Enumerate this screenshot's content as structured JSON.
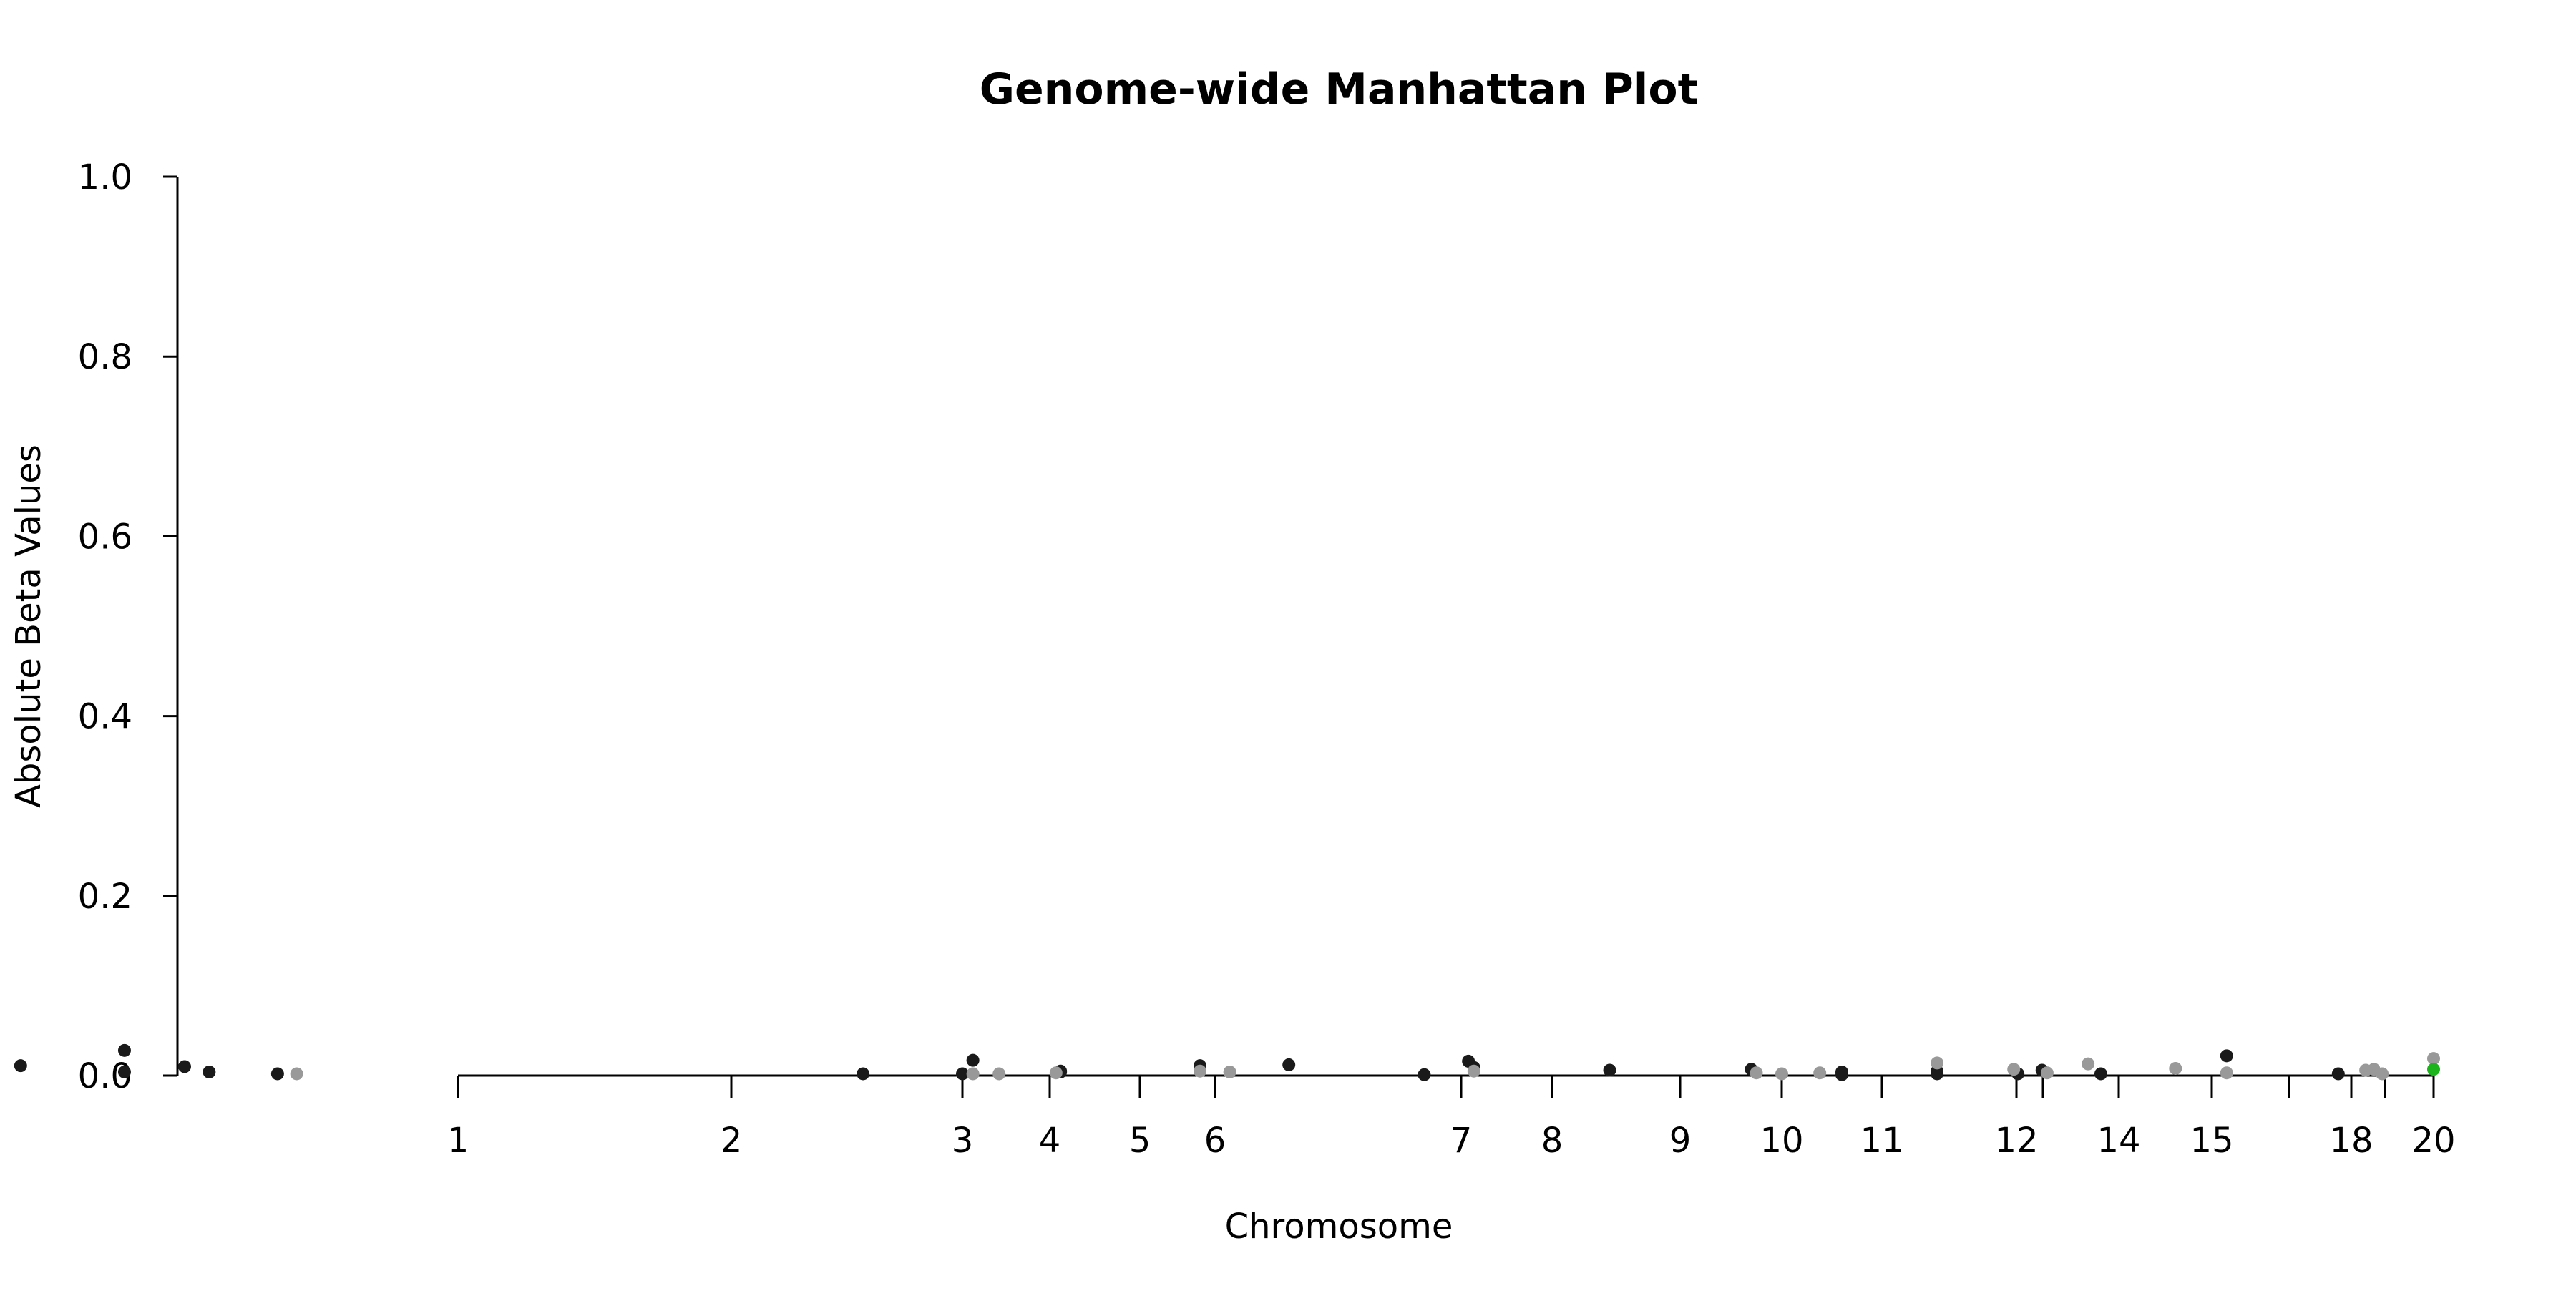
{
  "chart_data": {
    "type": "scatter",
    "title": "Genome-wide Manhattan Plot",
    "xlabel": "Chromosome",
    "ylabel": "Absolute Beta Values",
    "ylim": [
      0,
      1.0
    ],
    "yticks": [
      "0.0",
      "0.2",
      "0.4",
      "0.6",
      "0.8",
      "1.0"
    ],
    "x_tick_labels": [
      "1",
      "2",
      "3",
      "4",
      "5",
      "6",
      "7",
      "8",
      "9",
      "10",
      "11",
      "12",
      "14",
      "15",
      "18",
      "20"
    ],
    "grid": false,
    "legend": "none",
    "colors": {
      "odd": "#1a1a1a",
      "even": "#999999",
      "highlight": "#1db31d"
    },
    "series": [
      {
        "values": [
          {
            "x": -0.6,
            "y": 0.011
          },
          {
            "x": -0.22,
            "y": 0.028
          },
          {
            "x": -0.22,
            "y": 0.004
          },
          {
            "x": 0.0,
            "y": 0.01
          },
          {
            "x": 0.09,
            "y": 0.004
          },
          {
            "x": 0.34,
            "y": 0.002
          },
          {
            "x": 2.57,
            "y": 0.002
          },
          {
            "x": 3.0,
            "y": 0.002
          },
          {
            "x": 3.12,
            "y": 0.017
          },
          {
            "x": 4.12,
            "y": 0.005
          },
          {
            "x": 4.12,
            "y": 0.004
          },
          {
            "x": 5.8,
            "y": 0.011
          },
          {
            "x": 6.3,
            "y": 0.012
          },
          {
            "x": 6.85,
            "y": 0.001
          },
          {
            "x": 7.08,
            "y": 0.016
          },
          {
            "x": 7.14,
            "y": 0.009
          },
          {
            "x": 8.45,
            "y": 0.006
          },
          {
            "x": 9.7,
            "y": 0.007
          },
          {
            "x": 10.6,
            "y": 0.004
          },
          {
            "x": 10.6,
            "y": 0.001
          },
          {
            "x": 11.41,
            "y": 0.005
          },
          {
            "x": 11.41,
            "y": 0.002
          },
          {
            "x": 12.03,
            "y": 0.002
          },
          {
            "x": 12.5,
            "y": 0.006
          },
          {
            "x": 13.65,
            "y": 0.002
          },
          {
            "x": 15.32,
            "y": 0.022
          },
          {
            "x": 17.72,
            "y": 0.002
          }
        ]
      },
      {
        "values": [
          {
            "x": 0.41,
            "y": 0.002
          },
          {
            "x": 3.12,
            "y": 0.002
          },
          {
            "x": 3.42,
            "y": 0.002
          },
          {
            "x": 4.07,
            "y": 0.003
          },
          {
            "x": 5.8,
            "y": 0.005
          },
          {
            "x": 6.06,
            "y": 0.004
          },
          {
            "x": 7.14,
            "y": 0.005
          },
          {
            "x": 9.75,
            "y": 0.003
          },
          {
            "x": 10.0,
            "y": 0.002
          },
          {
            "x": 10.38,
            "y": 0.003
          },
          {
            "x": 11.41,
            "y": 0.014
          },
          {
            "x": 11.98,
            "y": 0.007
          },
          {
            "x": 12.6,
            "y": 0.003
          },
          {
            "x": 13.4,
            "y": 0.013
          },
          {
            "x": 14.61,
            "y": 0.008
          },
          {
            "x": 15.32,
            "y": 0.003
          },
          {
            "x": 18.35,
            "y": 0.006
          },
          {
            "x": 18.55,
            "y": 0.007
          },
          {
            "x": 18.75,
            "y": 0.002
          },
          {
            "x": 20.0,
            "y": 0.019
          }
        ]
      },
      {
        "values": [
          {
            "x": 20.0,
            "y": 0.007
          }
        ]
      }
    ]
  }
}
